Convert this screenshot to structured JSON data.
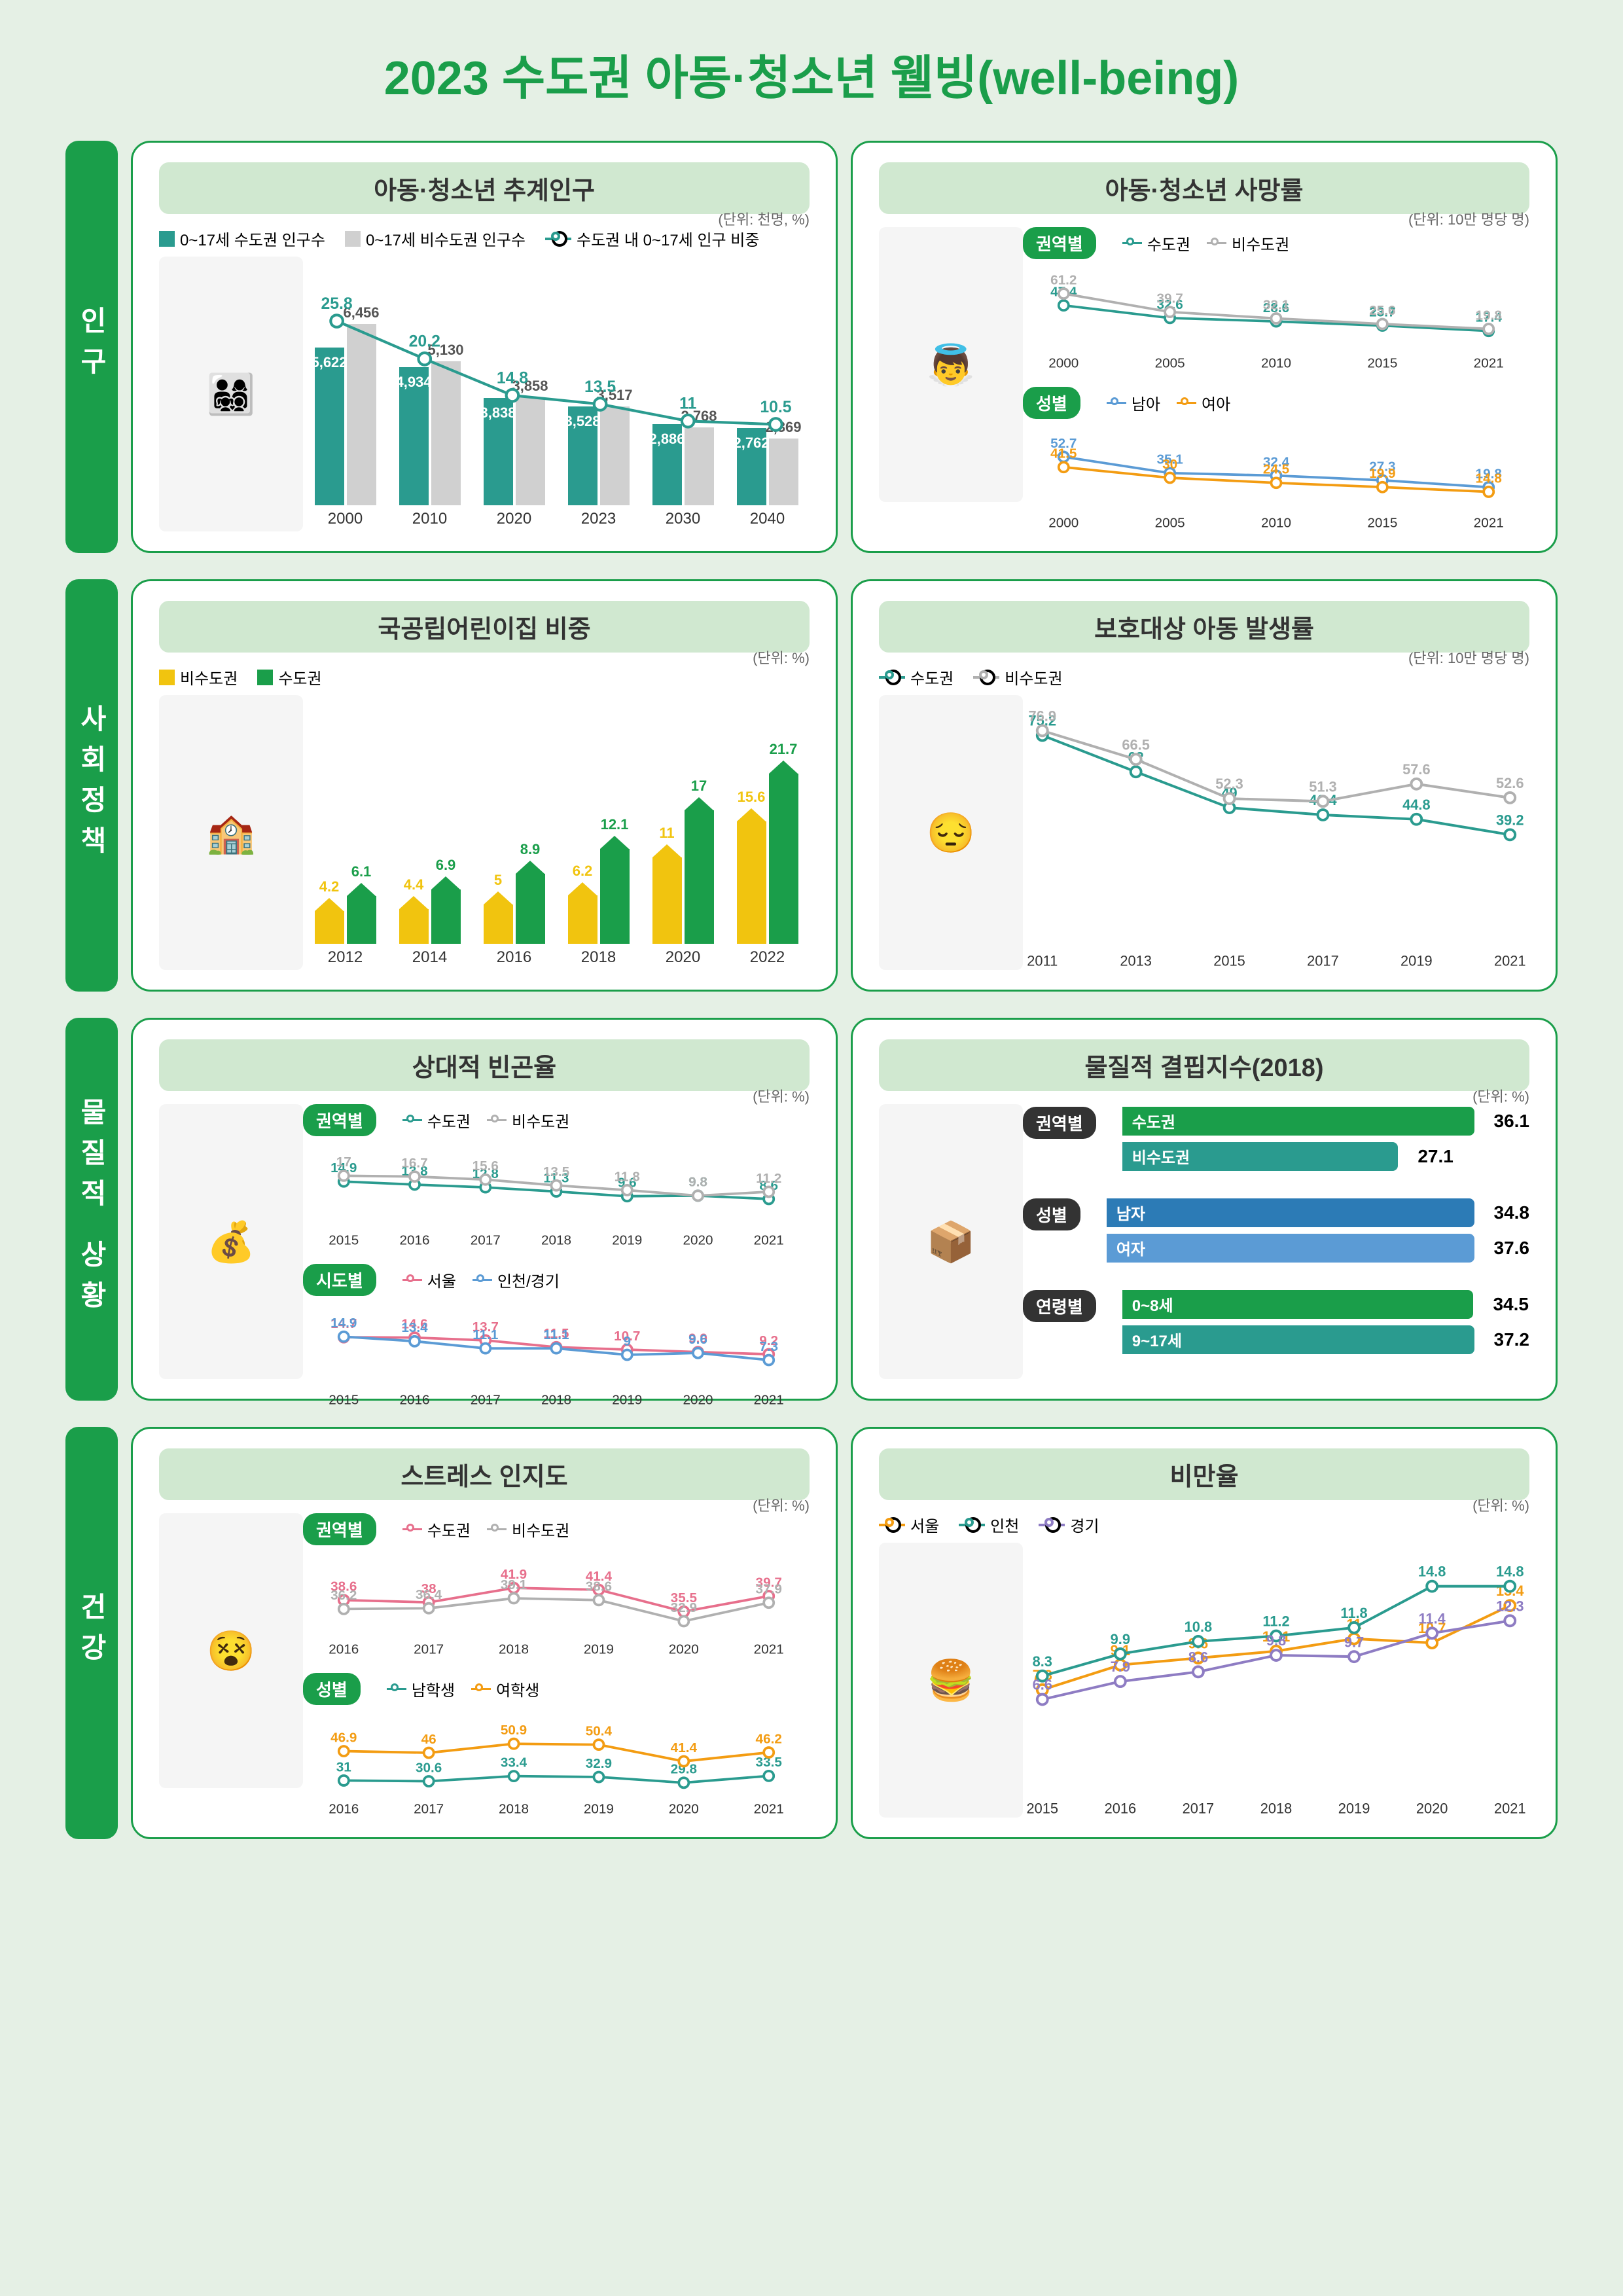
{
  "title": "2023 수도권 아동·청소년 웰빙(well-being)",
  "colors": {
    "green": "#1a9e4a",
    "teal": "#2a9b8f",
    "gray": "#b0b0b0",
    "orange": "#f39c12",
    "yellow": "#f1c40f",
    "pink": "#e76f8c",
    "blue": "#5b9bd5",
    "darkblue": "#2c7bb6"
  },
  "sections": [
    {
      "label": "인구",
      "panels": [
        {
          "title": "아동·청소년 추계인구",
          "unit": "(단위: 천명, %)",
          "legend": [
            {
              "type": "box",
              "color": "#2a9b8f",
              "label": "0~17세 수도권 인구수"
            },
            {
              "type": "box",
              "color": "#d0d0d0",
              "label": "0~17세 비수도권 인구수"
            },
            {
              "type": "line",
              "color": "#2a9b8f",
              "label": "수도권 내 0~17세 인구 비중"
            }
          ],
          "years": [
            "2000",
            "2010",
            "2020",
            "2023",
            "2030",
            "2040"
          ],
          "bar1": [
            5622,
            4934,
            3838,
            3528,
            2886,
            2762
          ],
          "bar2": [
            6456,
            5130,
            3858,
            3517,
            2768,
            2369
          ],
          "line": [
            25.8,
            20.2,
            14.8,
            13.5,
            11.0,
            10.5
          ],
          "bar1_color": "#2a9b8f",
          "bar2_color": "#d0d0d0",
          "line_color": "#2a9b8f",
          "ymax_bar": 7000,
          "ymax_line": 30,
          "illustration": "👨‍👩‍👧‍👦"
        },
        {
          "title": "아동·청소년 사망률",
          "unit": "(단위: 10만 명당 명)",
          "subcharts": [
            {
              "label": "권역별",
              "legend": [
                {
                  "color": "#2a9b8f",
                  "label": "수도권"
                },
                {
                  "color": "#b0b0b0",
                  "label": "비수도권"
                }
              ],
              "years": [
                "2000",
                "2005",
                "2010",
                "2015",
                "2021"
              ],
              "series": [
                {
                  "color": "#2a9b8f",
                  "values": [
                    47.4,
                    32.6,
                    28.6,
                    23.7,
                    17.4
                  ]
                },
                {
                  "color": "#b0b0b0",
                  "values": [
                    61.2,
                    39.7,
                    32.1,
                    25.6,
                    19.8
                  ]
                }
              ],
              "ymax": 65
            },
            {
              "label": "성별",
              "legend": [
                {
                  "color": "#5b9bd5",
                  "label": "남아"
                },
                {
                  "color": "#f39c12",
                  "label": "여아"
                }
              ],
              "years": [
                "2000",
                "2005",
                "2010",
                "2015",
                "2021"
              ],
              "series": [
                {
                  "color": "#5b9bd5",
                  "values": [
                    52.7,
                    35.1,
                    32.4,
                    27.3,
                    19.8
                  ]
                },
                {
                  "color": "#f39c12",
                  "values": [
                    41.5,
                    30.0,
                    24.5,
                    19.9,
                    14.8
                  ]
                }
              ],
              "ymax": 60
            }
          ],
          "illustration": "👼"
        }
      ]
    },
    {
      "label": "사회정책",
      "panels": [
        {
          "title": "국공립어린이집 비중",
          "unit": "(단위: %)",
          "legend": [
            {
              "type": "box",
              "color": "#f1c40f",
              "label": "비수도권"
            },
            {
              "type": "box",
              "color": "#1a9e4a",
              "label": "수도권"
            }
          ],
          "years": [
            "2012",
            "2014",
            "2016",
            "2018",
            "2020",
            "2022"
          ],
          "bar1": [
            4.2,
            4.4,
            5.0,
            6.2,
            11.0,
            15.6
          ],
          "bar2": [
            6.1,
            6.9,
            8.9,
            12.1,
            17.0,
            21.7
          ],
          "bar1_color": "#f1c40f",
          "bar2_color": "#1a9e4a",
          "ymax_bar": 25,
          "bar_shape": "house",
          "illustration": "🏫"
        },
        {
          "title": "보호대상 아동 발생률",
          "unit": "(단위: 10만 명당 명)",
          "legend": [
            {
              "color": "#2a9b8f",
              "label": "수도권"
            },
            {
              "color": "#b0b0b0",
              "label": "비수도권"
            }
          ],
          "years": [
            "2011",
            "2013",
            "2015",
            "2017",
            "2019",
            "2021"
          ],
          "series": [
            {
              "color": "#2a9b8f",
              "values": [
                75.2,
                62.0,
                49.0,
                46.4,
                44.8,
                39.2
              ]
            },
            {
              "color": "#b0b0b0",
              "values": [
                76.9,
                66.5,
                52.3,
                51.3,
                57.6,
                52.6
              ]
            }
          ],
          "ymax": 80,
          "illustration": "😔"
        }
      ]
    },
    {
      "label": "물질적 상황",
      "panels": [
        {
          "title": "상대적 빈곤율",
          "unit": "(단위: %)",
          "subcharts": [
            {
              "label": "권역별",
              "legend": [
                {
                  "color": "#2a9b8f",
                  "label": "수도권"
                },
                {
                  "color": "#b0b0b0",
                  "label": "비수도권"
                }
              ],
              "years": [
                "2015",
                "2016",
                "2017",
                "2018",
                "2019",
                "2020",
                "2021"
              ],
              "series": [
                {
                  "color": "#2a9b8f",
                  "values": [
                    14.9,
                    13.8,
                    12.8,
                    11.3,
                    9.6,
                    9.8,
                    8.6
                  ]
                },
                {
                  "color": "#b0b0b0",
                  "values": [
                    17.0,
                    16.7,
                    15.6,
                    13.5,
                    11.8,
                    9.8,
                    11.2
                  ]
                }
              ],
              "ymax": 20
            },
            {
              "label": "시도별",
              "legend": [
                {
                  "color": "#e76f8c",
                  "label": "서울"
                },
                {
                  "color": "#5b9bd5",
                  "label": "인천/경기"
                }
              ],
              "years": [
                "2015",
                "2016",
                "2017",
                "2018",
                "2019",
                "2020",
                "2021"
              ],
              "series": [
                {
                  "color": "#e76f8c",
                  "values": [
                    14.7,
                    14.6,
                    13.7,
                    11.5,
                    10.7,
                    9.9,
                    9.2
                  ]
                },
                {
                  "color": "#5b9bd5",
                  "values": [
                    14.9,
                    13.4,
                    11.1,
                    11.1,
                    9.0,
                    9.6,
                    7.3
                  ]
                }
              ],
              "ymax": 18
            }
          ],
          "illustration": "💰"
        },
        {
          "title": "물질적 결핍지수(2018)",
          "unit": "(단위: %)",
          "hbar_groups": [
            {
              "label": "권역별",
              "bars": [
                {
                  "label": "수도권",
                  "value": 36.1,
                  "color": "#1a9e4a"
                },
                {
                  "label": "비수도권",
                  "value": 27.1,
                  "color": "#2a9b8f"
                }
              ]
            },
            {
              "label": "성별",
              "bars": [
                {
                  "label": "남자",
                  "value": 34.8,
                  "color": "#2c7bb6"
                },
                {
                  "label": "여자",
                  "value": 37.6,
                  "color": "#5b9bd5"
                }
              ]
            },
            {
              "label": "연령별",
              "bars": [
                {
                  "label": "0~8세",
                  "value": 34.5,
                  "color": "#1a9e4a"
                },
                {
                  "label": "9~17세",
                  "value": 37.2,
                  "color": "#2a9b8f"
                }
              ]
            }
          ],
          "hbar_max": 40,
          "illustration": "📦"
        }
      ]
    },
    {
      "label": "건강",
      "panels": [
        {
          "title": "스트레스 인지도",
          "unit": "(단위: %)",
          "subcharts": [
            {
              "label": "권역별",
              "legend": [
                {
                  "color": "#e76f8c",
                  "label": "수도권"
                },
                {
                  "color": "#b0b0b0",
                  "label": "비수도권"
                }
              ],
              "years": [
                "2016",
                "2017",
                "2018",
                "2019",
                "2020",
                "2021"
              ],
              "series": [
                {
                  "color": "#e76f8c",
                  "values": [
                    38.6,
                    38.0,
                    41.9,
                    41.4,
                    35.5,
                    39.7
                  ]
                },
                {
                  "color": "#b0b0b0",
                  "values": [
                    36.2,
                    36.4,
                    39.1,
                    38.6,
                    32.9,
                    37.9
                  ]
                }
              ],
              "ymin": 30,
              "ymax": 45
            },
            {
              "label": "성별",
              "legend": [
                {
                  "color": "#2a9b8f",
                  "label": "남학생"
                },
                {
                  "color": "#f39c12",
                  "label": "여학생"
                }
              ],
              "years": [
                "2016",
                "2017",
                "2018",
                "2019",
                "2020",
                "2021"
              ],
              "series": [
                {
                  "color": "#2a9b8f",
                  "values": [
                    31.0,
                    30.6,
                    33.4,
                    32.9,
                    29.8,
                    33.5
                  ]
                },
                {
                  "color": "#f39c12",
                  "values": [
                    46.9,
                    46.0,
                    50.9,
                    50.4,
                    41.4,
                    46.2
                  ]
                }
              ],
              "ymin": 25,
              "ymax": 55
            }
          ],
          "illustration": "😵"
        },
        {
          "title": "비만율",
          "unit": "(단위: %)",
          "legend": [
            {
              "color": "#f39c12",
              "label": "서울"
            },
            {
              "color": "#2a9b8f",
              "label": "인천"
            },
            {
              "color": "#8e7cc3",
              "label": "경기"
            }
          ],
          "years": [
            "2015",
            "2016",
            "2017",
            "2018",
            "2019",
            "2020",
            "2021"
          ],
          "series": [
            {
              "color": "#f39c12",
              "values": [
                7.3,
                9.1,
                9.6,
                10.1,
                11.0,
                10.7,
                13.4
              ]
            },
            {
              "color": "#2a9b8f",
              "values": [
                8.3,
                9.9,
                10.8,
                11.2,
                11.8,
                14.8,
                14.8
              ]
            },
            {
              "color": "#8e7cc3",
              "values": [
                6.6,
                7.9,
                8.6,
                9.8,
                9.7,
                11.4,
                12.3
              ]
            }
          ],
          "ymax": 16,
          "illustration": "🍔"
        }
      ]
    }
  ]
}
